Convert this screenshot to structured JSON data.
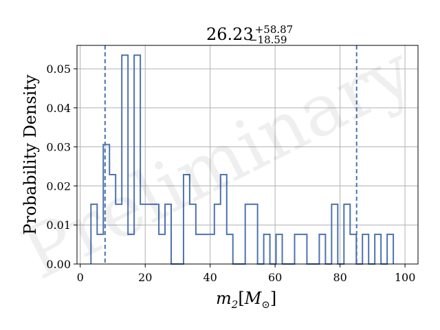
{
  "chart_data": {
    "type": "histogram",
    "title": {
      "value": "26.23",
      "upper": "+58.87",
      "lower": "−18.59"
    },
    "xlabel": {
      "main": "m",
      "sub": "2",
      "bracket_open": "[",
      "unit_main": "M",
      "unit_sub": "⊙",
      "bracket_close": "]"
    },
    "ylabel": "Probability Density",
    "watermark": "Preliminary",
    "xlim": [
      -1,
      104
    ],
    "ylim": [
      0,
      0.056
    ],
    "xticks": [
      0,
      20,
      40,
      60,
      80,
      100
    ],
    "xtick_labels": [
      "0",
      "20",
      "40",
      "60",
      "80",
      "100"
    ],
    "yticks": [
      0.0,
      0.01,
      0.02,
      0.03,
      0.04,
      0.05
    ],
    "ytick_labels": [
      "0.00",
      "0.01",
      "0.02",
      "0.03",
      "0.04",
      "0.05"
    ],
    "grid": true,
    "line_color": "#4c72b0",
    "bin_width": 1.9,
    "bin_start": 3.3,
    "values": [
      0.0153,
      0.0076,
      0.0306,
      0.0229,
      0.0153,
      0.0535,
      0.0076,
      0.0535,
      0.0153,
      0.0153,
      0.0153,
      0.0076,
      0.0153,
      0.0,
      0.0,
      0.0229,
      0.0153,
      0.0076,
      0.0076,
      0.0076,
      0.0153,
      0.0229,
      0.0076,
      0.0,
      0.0,
      0.0153,
      0.0153,
      0.0,
      0.0076,
      0.0,
      0.0076,
      0.0,
      0.0,
      0.0076,
      0.0076,
      0.0,
      0.0,
      0.0076,
      0.0,
      0.0153,
      0.0,
      0.0153,
      0.0076,
      0.0,
      0.0076,
      0.0,
      0.0076,
      0.0,
      0.0076
    ],
    "credible_interval": [
      7.64,
      85.1
    ]
  }
}
